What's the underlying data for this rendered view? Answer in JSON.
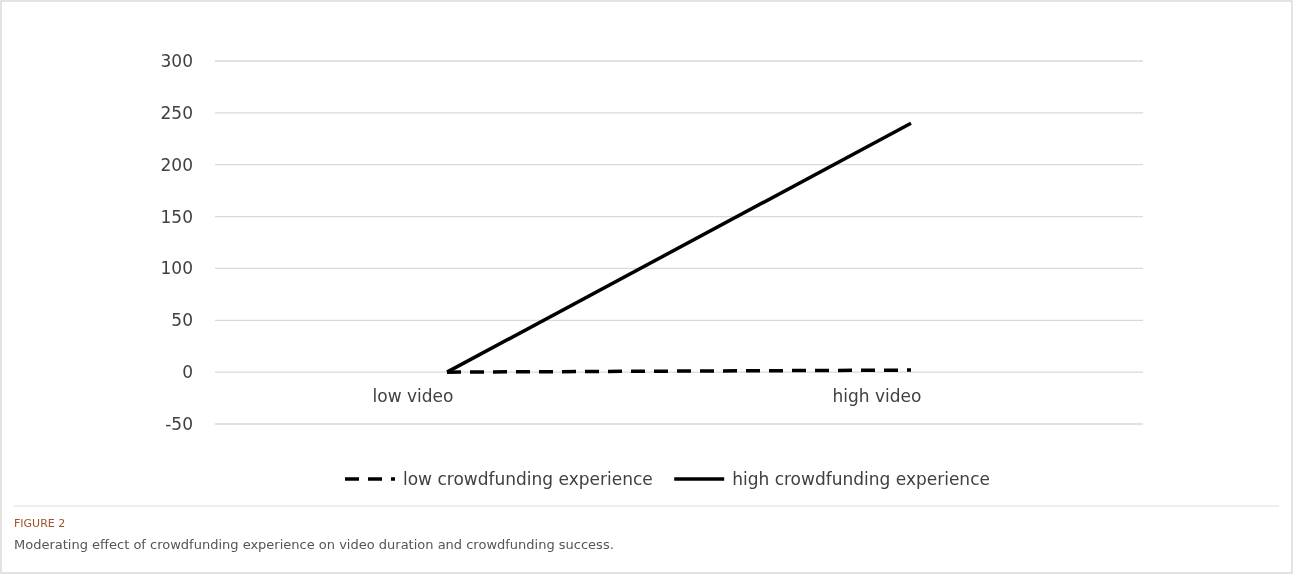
{
  "chart_data": {
    "type": "line",
    "title": "FIGURE 2",
    "subtitle": "Moderating effect of crowdfunding experience on video duration and crowdfunding success.",
    "categories": [
      "low video",
      "high video"
    ],
    "series": [
      {
        "name": "low crowdfunding experience",
        "color": "#000000",
        "values": [
          0,
          2
        ],
        "line_style": "dashed"
      },
      {
        "name": "high crowdfunding experience",
        "color": "#000000",
        "values": [
          0,
          240
        ],
        "line_style": "solid"
      }
    ],
    "ylim": [
      -50,
      300
    ],
    "yticks": [
      -50,
      0,
      50,
      100,
      150,
      200,
      250,
      300
    ],
    "grid": "y",
    "legend": "bottom",
    "marker": "none"
  }
}
